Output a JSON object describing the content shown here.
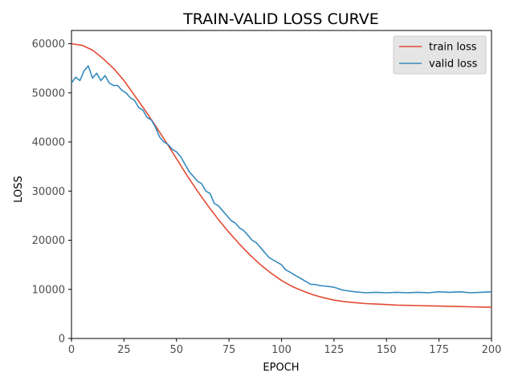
{
  "chart_data": {
    "type": "line",
    "title": "TRAIN-VALID LOSS CURVE",
    "xlabel": "EPOCH",
    "ylabel": "LOSS",
    "xlim": [
      0,
      200
    ],
    "ylim": [
      0,
      62700
    ],
    "xticks": [
      0,
      25,
      50,
      75,
      100,
      125,
      150,
      175,
      200
    ],
    "yticks": [
      0,
      10000,
      20000,
      30000,
      40000,
      50000,
      60000
    ],
    "grid": false,
    "legend_position": "top-right",
    "series": [
      {
        "name": "train loss",
        "color": "#e24a33",
        "x": [
          0,
          5,
          10,
          15,
          20,
          25,
          30,
          35,
          40,
          45,
          50,
          55,
          60,
          65,
          70,
          75,
          80,
          85,
          90,
          95,
          100,
          105,
          110,
          115,
          120,
          125,
          130,
          135,
          140,
          145,
          150,
          155,
          160,
          165,
          170,
          175,
          180,
          185,
          190,
          195,
          200
        ],
        "y": [
          60000,
          59700,
          58700,
          57000,
          55000,
          52500,
          49500,
          46500,
          43300,
          40000,
          36600,
          33200,
          30000,
          27000,
          24200,
          21600,
          19200,
          17000,
          15000,
          13300,
          11800,
          10600,
          9700,
          8900,
          8300,
          7800,
          7500,
          7300,
          7100,
          7000,
          6900,
          6800,
          6750,
          6700,
          6650,
          6600,
          6550,
          6500,
          6450,
          6400,
          6350
        ]
      },
      {
        "name": "valid loss",
        "color": "#348abd",
        "x": [
          0,
          2,
          4,
          6,
          8,
          10,
          12,
          14,
          16,
          18,
          20,
          22,
          24,
          26,
          28,
          30,
          32,
          34,
          36,
          38,
          40,
          42,
          44,
          46,
          48,
          50,
          52,
          54,
          56,
          58,
          60,
          62,
          64,
          66,
          68,
          70,
          72,
          74,
          76,
          78,
          80,
          82,
          84,
          86,
          88,
          90,
          92,
          94,
          96,
          98,
          100,
          102,
          104,
          106,
          108,
          110,
          112,
          114,
          116,
          118,
          120,
          122,
          124,
          126,
          128,
          130,
          135,
          140,
          145,
          150,
          155,
          160,
          165,
          170,
          175,
          180,
          185,
          190,
          195,
          200
        ],
        "y": [
          52000,
          53200,
          52500,
          54500,
          55500,
          53000,
          54000,
          52500,
          53500,
          52000,
          51500,
          51500,
          50500,
          50000,
          49000,
          48500,
          47000,
          46500,
          45000,
          44500,
          43000,
          41000,
          40000,
          39500,
          38500,
          38000,
          37000,
          35500,
          34000,
          33000,
          32000,
          31500,
          30000,
          29500,
          27500,
          27000,
          26000,
          25000,
          24000,
          23500,
          22500,
          22000,
          21000,
          20000,
          19500,
          18500,
          17500,
          16500,
          16000,
          15500,
          15000,
          14000,
          13500,
          13000,
          12500,
          12000,
          11500,
          11000,
          11000,
          10800,
          10700,
          10600,
          10500,
          10300,
          10000,
          9800,
          9500,
          9300,
          9400,
          9300,
          9400,
          9300,
          9400,
          9300,
          9500,
          9400,
          9500,
          9300,
          9400,
          9500
        ]
      }
    ]
  }
}
